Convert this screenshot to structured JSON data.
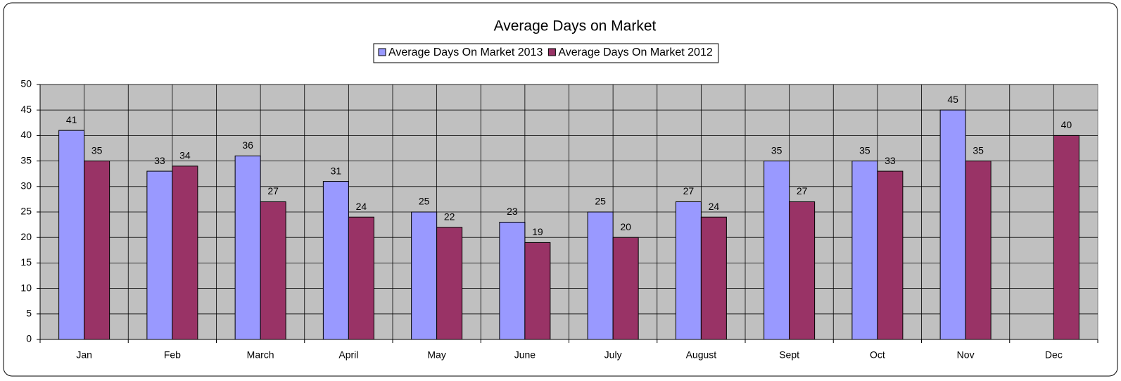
{
  "chart_data": {
    "type": "bar",
    "title": "Average Days on Market",
    "categories": [
      "Jan",
      "Feb",
      "March",
      "April",
      "May",
      "June",
      "July",
      "August",
      "Sept",
      "Oct",
      "Nov",
      "Dec"
    ],
    "series": [
      {
        "name": "Average Days On Market 2013",
        "color": "#9999ff",
        "values": [
          41,
          33,
          36,
          31,
          25,
          23,
          25,
          27,
          35,
          35,
          45,
          null
        ]
      },
      {
        "name": "Average Days On Market 2012",
        "color": "#993366",
        "values": [
          35,
          34,
          27,
          24,
          22,
          19,
          20,
          24,
          27,
          33,
          35,
          40
        ]
      }
    ],
    "ylim": [
      0,
      50
    ],
    "yticks": [
      0,
      5,
      10,
      15,
      20,
      25,
      30,
      35,
      40,
      45,
      50
    ],
    "grid": true,
    "legend": "top"
  }
}
